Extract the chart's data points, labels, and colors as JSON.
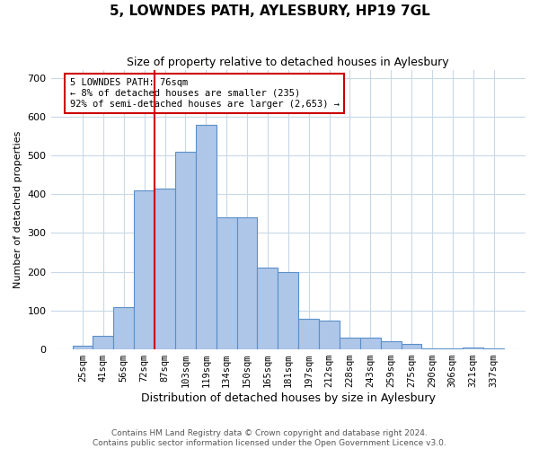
{
  "title": "5, LOWNDES PATH, AYLESBURY, HP19 7GL",
  "subtitle": "Size of property relative to detached houses in Aylesbury",
  "xlabel": "Distribution of detached houses by size in Aylesbury",
  "ylabel": "Number of detached properties",
  "categories": [
    "25sqm",
    "41sqm",
    "56sqm",
    "72sqm",
    "87sqm",
    "103sqm",
    "119sqm",
    "134sqm",
    "150sqm",
    "165sqm",
    "181sqm",
    "197sqm",
    "212sqm",
    "228sqm",
    "243sqm",
    "259sqm",
    "275sqm",
    "290sqm",
    "306sqm",
    "321sqm",
    "337sqm"
  ],
  "values": [
    10,
    35,
    110,
    410,
    415,
    510,
    580,
    340,
    340,
    210,
    200,
    80,
    75,
    30,
    30,
    20,
    15,
    2,
    2,
    5,
    2
  ],
  "bar_color": "#aec6e8",
  "bar_edge_color": "#5b8fc9",
  "vline_color": "#cc0000",
  "vline_pos": 3.5,
  "annotation_text": "5 LOWNDES PATH: 76sqm\n← 8% of detached houses are smaller (235)\n92% of semi-detached houses are larger (2,653) →",
  "annotation_box_color": "#ffffff",
  "annotation_box_edge_color": "#cc0000",
  "ylim": [
    0,
    720
  ],
  "yticks": [
    0,
    100,
    200,
    300,
    400,
    500,
    600,
    700
  ],
  "footer_line1": "Contains HM Land Registry data © Crown copyright and database right 2024.",
  "footer_line2": "Contains public sector information licensed under the Open Government Licence v3.0.",
  "bg_color": "#ffffff",
  "grid_color": "#c8d8e8"
}
